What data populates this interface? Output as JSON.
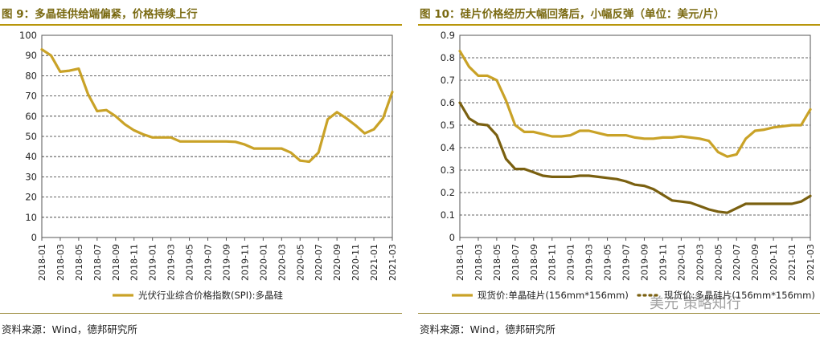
{
  "figures": [
    {
      "title": "图 9：多晶硅供给端偏紧，价格持续上行",
      "source": "资料来源：Wind，德邦研究所"
    },
    {
      "title": "图 10：硅片价格经历大幅回落后，小幅反弹（单位：美元/片）",
      "source": "资料来源：Wind，德邦研究所"
    }
  ],
  "watermark": "美元 策略知行",
  "chart_data": [
    {
      "type": "line",
      "title": "图 9：多晶硅供给端偏紧，价格持续上行",
      "xlabel": "",
      "ylabel": "",
      "ylim": [
        0,
        100
      ],
      "yticks": [
        "0",
        "10",
        "20",
        "30",
        "40",
        "50",
        "60",
        "70",
        "80",
        "90",
        "100"
      ],
      "xtick_labels": [
        "2018-01",
        "2018-03",
        "2018-05",
        "2018-07",
        "2018-09",
        "2018-11",
        "2019-01",
        "2019-03",
        "2019-05",
        "2019-07",
        "2019-09",
        "2019-11",
        "2020-01",
        "2020-03",
        "2020-05",
        "2020-07",
        "2020-09",
        "2020-11",
        "2021-01",
        "2021-03"
      ],
      "x_range": [
        0,
        38
      ],
      "legend_position": "bottom",
      "series": [
        {
          "name": "光伏行业综合价格指数(SPI):多晶硅",
          "color": "#c9a227",
          "style": "solid",
          "x": [
            0,
            1,
            2,
            3,
            4,
            5,
            6,
            7,
            8,
            9,
            10,
            11,
            12,
            13,
            14,
            15,
            16,
            17,
            18,
            19,
            20,
            21,
            22,
            23,
            24,
            25,
            26,
            27,
            28,
            29,
            30,
            31,
            32,
            33,
            34,
            35,
            36,
            37,
            38
          ],
          "values": [
            93,
            90,
            82,
            82.5,
            83.5,
            71,
            62.5,
            63,
            60,
            56,
            53,
            51,
            49.5,
            49.5,
            49.5,
            47.5,
            47.5,
            47.5,
            47.5,
            47.5,
            47.5,
            47.3,
            46,
            44,
            44,
            44,
            44,
            42,
            38,
            37.5,
            42,
            58.5,
            62,
            59,
            55.5,
            51.5,
            53.5,
            59,
            72
          ]
        }
      ]
    },
    {
      "type": "line",
      "title": "图 10：硅片价格经历大幅回落后，小幅反弹（单位：美元/片）",
      "xlabel": "",
      "ylabel": "",
      "ylim": [
        0,
        0.9
      ],
      "yticks": [
        "0",
        "0.1",
        "0.2",
        "0.3",
        "0.4",
        "0.5",
        "0.6",
        "0.7",
        "0.8",
        "0.9"
      ],
      "xtick_labels": [
        "2018-01",
        "2018-03",
        "2018-05",
        "2018-07",
        "2018-09",
        "2018-11",
        "2019-01",
        "2019-03",
        "2019-05",
        "2019-07",
        "2019-09",
        "2019-11",
        "2020-01",
        "2020-03",
        "2020-05",
        "2020-07",
        "2020-09",
        "2020-11",
        "2021-01",
        "2021-03"
      ],
      "x_range": [
        0,
        38
      ],
      "legend_position": "bottom",
      "series": [
        {
          "name": "现货价:单晶硅片(156mm*156mm)",
          "color": "#c9a227",
          "style": "solid",
          "x": [
            0,
            1,
            2,
            3,
            4,
            5,
            6,
            7,
            8,
            9,
            10,
            11,
            12,
            13,
            14,
            15,
            16,
            17,
            18,
            19,
            20,
            21,
            22,
            23,
            24,
            25,
            26,
            27,
            28,
            29,
            30,
            31,
            32,
            33,
            34,
            35,
            36,
            37,
            38
          ],
          "values": [
            0.83,
            0.76,
            0.72,
            0.72,
            0.7,
            0.61,
            0.5,
            0.47,
            0.47,
            0.46,
            0.45,
            0.45,
            0.455,
            0.475,
            0.475,
            0.465,
            0.455,
            0.455,
            0.455,
            0.445,
            0.44,
            0.44,
            0.445,
            0.445,
            0.45,
            0.445,
            0.44,
            0.43,
            0.38,
            0.36,
            0.37,
            0.44,
            0.475,
            0.48,
            0.49,
            0.495,
            0.5,
            0.5,
            0.57
          ]
        },
        {
          "name": "现货价:多晶硅片(156mm*156mm)",
          "color": "#7a6010",
          "style": "solid",
          "x": [
            0,
            1,
            2,
            3,
            4,
            5,
            6,
            7,
            8,
            9,
            10,
            11,
            12,
            13,
            14,
            15,
            16,
            17,
            18,
            19,
            20,
            21,
            22,
            23,
            24,
            25,
            26,
            27,
            28,
            29,
            30,
            31,
            32,
            33,
            34,
            35,
            36,
            37,
            38
          ],
          "values": [
            0.6,
            0.53,
            0.505,
            0.5,
            0.455,
            0.35,
            0.305,
            0.305,
            0.29,
            0.275,
            0.27,
            0.27,
            0.27,
            0.275,
            0.275,
            0.27,
            0.265,
            0.26,
            0.25,
            0.235,
            0.23,
            0.215,
            0.19,
            0.165,
            0.16,
            0.155,
            0.14,
            0.125,
            0.115,
            0.11,
            0.13,
            0.15,
            0.15,
            0.15,
            0.15,
            0.15,
            0.15,
            0.16,
            0.185
          ]
        }
      ]
    }
  ]
}
